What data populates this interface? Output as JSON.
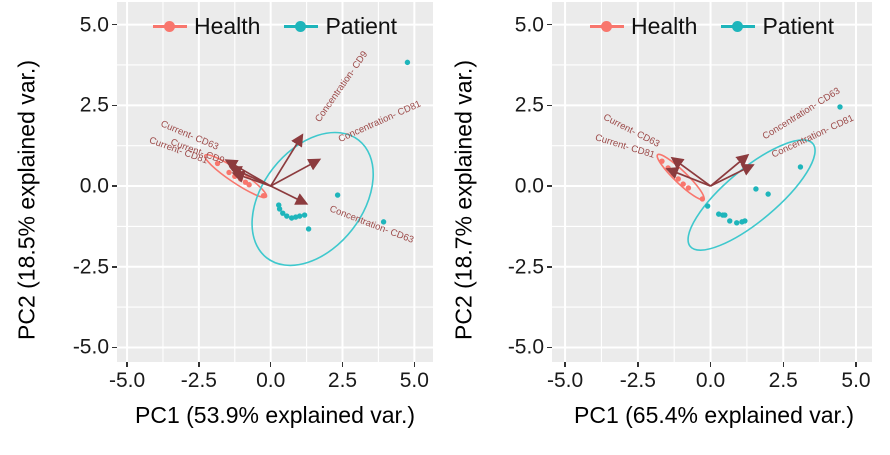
{
  "colors": {
    "health": "#F8766D",
    "patient": "#1EB5BB",
    "patient_ellipse": "#3EC8CD",
    "health_ellipse": "#F8766D",
    "loading_arrow": "#8C3B3E",
    "loading_label": "#9C4A49",
    "panel_bg": "#EBEBEB",
    "grid": "#FFFFFF",
    "tick": "#333333"
  },
  "legend": {
    "items": [
      {
        "label": "Health",
        "color": "#F8766D"
      },
      {
        "label": "Patient",
        "color": "#1EB5BB"
      }
    ]
  },
  "chart_data": [
    {
      "type": "scatter",
      "subtype": "pca-biplot",
      "xlabel": "PC1 (53.9% explained var.)",
      "ylabel": "PC2 (18.5% explained var.)",
      "xlim": [
        -5.35,
        5.65
      ],
      "ylim": [
        -5.45,
        5.7
      ],
      "xticks": [
        -5,
        -2.5,
        0,
        2.5,
        5
      ],
      "xtick_labels": [
        "-5.0",
        "-2.5",
        "0.0",
        "2.5",
        "5.0"
      ],
      "yticks": [
        5,
        2.5,
        0,
        -2.5,
        -5
      ],
      "ytick_labels": [
        "5.0",
        "2.5",
        "0.0",
        "-2.5",
        "-5.0"
      ],
      "grid": "major+minor",
      "legend_position": "top",
      "series": [
        {
          "name": "Health",
          "color": "#F8766D",
          "points": [
            [
              -1.85,
              0.7
            ],
            [
              -1.45,
              0.42
            ],
            [
              -1.25,
              0.3
            ],
            [
              -1.05,
              0.22
            ],
            [
              -0.88,
              0.12
            ],
            [
              -0.75,
              0.04
            ],
            [
              -0.25,
              -0.3
            ]
          ]
        },
        {
          "name": "Patient",
          "color": "#1EB5BB",
          "points": [
            [
              0.28,
              -0.59
            ],
            [
              0.31,
              -0.71
            ],
            [
              0.42,
              -0.84
            ],
            [
              0.56,
              -0.93
            ],
            [
              0.73,
              -0.99
            ],
            [
              0.87,
              -0.96
            ],
            [
              1.01,
              -0.93
            ],
            [
              1.18,
              -0.9
            ],
            [
              1.32,
              -1.33
            ],
            [
              2.33,
              -0.28
            ],
            [
              3.93,
              -1.11
            ],
            [
              4.76,
              3.83
            ]
          ]
        }
      ],
      "ellipses": [
        {
          "group": "Health",
          "cx": -1.22,
          "cy": 0.31,
          "rx": 1.29,
          "ry": 0.2,
          "angle_deg": 34
        },
        {
          "group": "Patient",
          "cx": 1.46,
          "cy": -0.4,
          "rx": 2.6,
          "ry": 1.55,
          "angle_deg": -52
        }
      ],
      "loadings": [
        {
          "label": "Concentration- CD9",
          "tip": [
            1.1,
            1.58
          ],
          "label_pos": [
            2.54,
            3.03
          ],
          "label_angle_deg": -55
        },
        {
          "label": "Concentration- CD81",
          "tip": [
            1.7,
            0.82
          ],
          "label_pos": [
            3.83,
            1.92
          ],
          "label_angle_deg": -24
        },
        {
          "label": "Concentration- CD63",
          "tip": [
            1.25,
            -0.55
          ],
          "label_pos": [
            3.48,
            -1.27
          ],
          "label_angle_deg": 21
        },
        {
          "label": "Current- CD63",
          "tip": [
            -1.55,
            0.8
          ],
          "label_pos": [
            -2.86,
            1.49
          ],
          "label_angle_deg": 23
        },
        {
          "label": "Current- CD81",
          "tip": [
            -1.3,
            0.4
          ],
          "label_pos": [
            -3.24,
            1.02
          ],
          "label_angle_deg": 20
        },
        {
          "label": "Current- CD9",
          "tip": [
            -1.4,
            0.58
          ],
          "label_pos": [
            -2.58,
            0.99
          ],
          "label_angle_deg": 20
        }
      ]
    },
    {
      "type": "scatter",
      "subtype": "pca-biplot",
      "xlabel": "PC1 (65.4% explained var.)",
      "ylabel": "PC2 (18.7% explained var.)",
      "xlim": [
        -5.45,
        5.55
      ],
      "ylim": [
        -5.45,
        5.7
      ],
      "xticks": [
        -5,
        -2.5,
        0,
        2.5,
        5
      ],
      "xtick_labels": [
        "-5.0",
        "-2.5",
        "0.0",
        "2.5",
        "5.0"
      ],
      "yticks": [
        5,
        2.5,
        0,
        -2.5,
        -5
      ],
      "ytick_labels": [
        "5.0",
        "2.5",
        "0.0",
        "-2.5",
        "-5.0"
      ],
      "grid": "major+minor",
      "legend_position": "top",
      "series": [
        {
          "name": "Health",
          "color": "#F8766D",
          "points": [
            [
              -1.67,
              0.77
            ],
            [
              -1.46,
              0.56
            ],
            [
              -1.28,
              0.37
            ],
            [
              -1.11,
              0.22
            ],
            [
              -0.94,
              0.06
            ],
            [
              -0.76,
              -0.06
            ],
            [
              -0.28,
              -0.4
            ]
          ]
        },
        {
          "name": "Patient",
          "color": "#1EB5BB",
          "points": [
            [
              -0.1,
              -0.62
            ],
            [
              0.28,
              -0.87
            ],
            [
              0.42,
              -0.9
            ],
            [
              0.49,
              -0.9
            ],
            [
              0.66,
              -1.08
            ],
            [
              0.9,
              -1.14
            ],
            [
              1.08,
              -1.11
            ],
            [
              1.18,
              -1.08
            ],
            [
              1.56,
              -0.09
            ],
            [
              1.98,
              -0.25
            ],
            [
              3.09,
              0.59
            ],
            [
              4.45,
              2.45
            ]
          ]
        }
      ],
      "ellipses": [
        {
          "group": "Health",
          "cx": -1.03,
          "cy": 0.28,
          "rx": 1.1,
          "ry": 0.19,
          "angle_deg": 44
        },
        {
          "group": "Patient",
          "cx": 1.41,
          "cy": -0.28,
          "rx": 2.75,
          "ry": 0.8,
          "angle_deg": -40
        }
      ],
      "loadings": [
        {
          "label": "Current- CD63",
          "tip": [
            -1.32,
            0.87
          ],
          "label_pos": [
            -2.76,
            1.64
          ],
          "label_angle_deg": 27
        },
        {
          "label": "Current- CD81",
          "tip": [
            -1.49,
            0.53
          ],
          "label_pos": [
            -2.97,
            1.15
          ],
          "label_angle_deg": 17
        },
        {
          "label": "Concentration- CD63",
          "tip": [
            1.28,
            0.96
          ],
          "label_pos": [
            3.17,
            2.17
          ],
          "label_angle_deg": -32
        },
        {
          "label": "Concentration- CD81",
          "tip": [
            1.46,
            0.65
          ],
          "label_pos": [
            3.55,
            1.46
          ],
          "label_angle_deg": -25
        }
      ]
    }
  ]
}
